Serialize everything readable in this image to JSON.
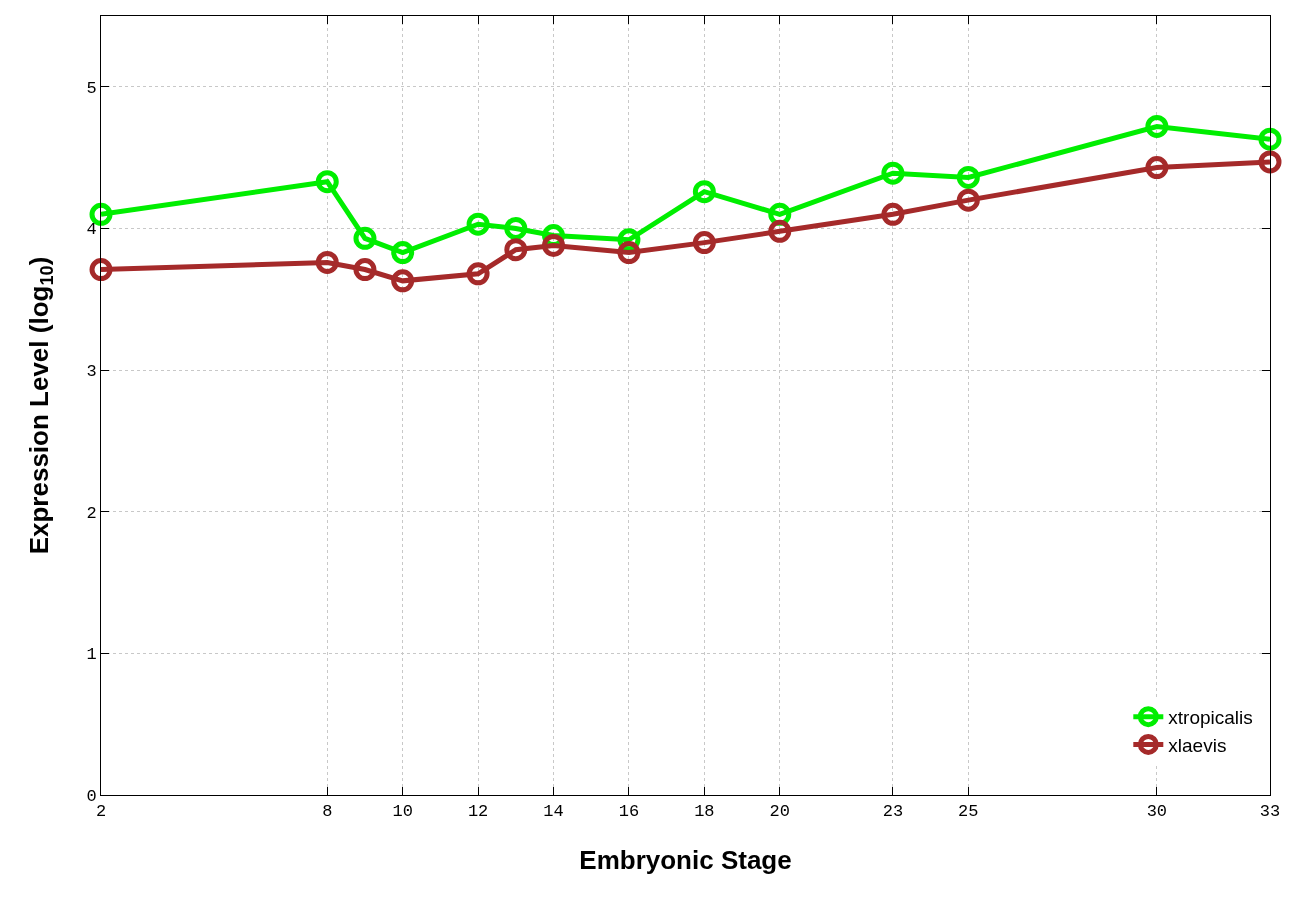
{
  "chart_data": {
    "type": "line",
    "xlabel": "Embryonic Stage",
    "ylabel": "Expression Level (log$_{10}$)",
    "x": [
      2,
      8,
      9,
      10,
      12,
      13,
      14,
      16,
      18,
      20,
      23,
      25,
      30,
      33
    ],
    "series": [
      {
        "name": "xtropicalis",
        "color": "#00ee00",
        "values": [
          4.1,
          4.33,
          3.93,
          3.83,
          4.03,
          4.0,
          3.95,
          3.92,
          4.26,
          4.1,
          4.39,
          4.36,
          4.72,
          4.63
        ]
      },
      {
        "name": "xlaevis",
        "color": "#a52a2a",
        "values": [
          3.71,
          3.76,
          3.71,
          3.63,
          3.68,
          3.85,
          3.88,
          3.83,
          3.9,
          3.98,
          4.1,
          4.2,
          4.43,
          4.47
        ]
      }
    ],
    "xlim": [
      2,
      33
    ],
    "xticks": [
      2,
      8,
      10,
      12,
      14,
      16,
      18,
      20,
      23,
      25,
      30,
      33
    ],
    "ylim": [
      0,
      5.5
    ],
    "yticks": [
      0,
      1,
      2,
      3,
      4,
      5
    ],
    "grid": true,
    "legend": "bottom right",
    "marker": "circle",
    "line_style": "solid"
  }
}
